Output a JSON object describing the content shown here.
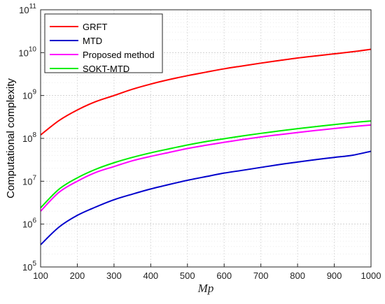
{
  "chart_data": {
    "type": "line",
    "title": "",
    "xlabel": "Mp",
    "ylabel": "Computational complexity",
    "x": [
      100,
      150,
      200,
      250,
      300,
      350,
      400,
      450,
      500,
      550,
      600,
      650,
      700,
      750,
      800,
      850,
      900,
      950,
      1000
    ],
    "xlim": [
      100,
      1000
    ],
    "ylim": [
      100000,
      100000000000
    ],
    "yscale": "log",
    "xticks": [
      "100",
      "200",
      "300",
      "400",
      "500",
      "600",
      "700",
      "800",
      "900",
      "1000"
    ],
    "yticks": [
      {
        "base": "10",
        "exp": "5"
      },
      {
        "base": "10",
        "exp": "6"
      },
      {
        "base": "10",
        "exp": "7"
      },
      {
        "base": "10",
        "exp": "8"
      },
      {
        "base": "10",
        "exp": "9"
      },
      {
        "base": "10",
        "exp": "10"
      },
      {
        "base": "10",
        "exp": "11"
      }
    ],
    "grid": true,
    "legend_position": "top-left",
    "series": [
      {
        "name": "GRFT",
        "color": "#ff0000",
        "values": [
          120000000.0,
          260000000.0,
          460000000.0,
          720000000.0,
          1000000000.0,
          1400000000.0,
          1850000000.0,
          2350000000.0,
          2900000000.0,
          3500000000.0,
          4200000000.0,
          4900000000.0,
          5700000000.0,
          6550000000.0,
          7500000000.0,
          8400000000.0,
          9400000000.0,
          10500000000.0,
          12000000000.0
        ]
      },
      {
        "name": "MTD",
        "color": "#0000cc",
        "values": [
          330000.0,
          850000.0,
          1600000.0,
          2500000.0,
          3700000.0,
          5000000.0,
          6600000.0,
          8400000.0,
          10500000.0,
          12800000.0,
          15500000.0,
          18000000.0,
          21000000.0,
          24500000.0,
          28000000.0,
          32000000.0,
          36000000.0,
          40500000.0,
          50000000.0
        ]
      },
      {
        "name": "Proposed method",
        "color": "#ff00ff",
        "values": [
          2000000.0,
          5500000.0,
          10000000.0,
          16000000.0,
          22000000.0,
          30000000.0,
          38000000.0,
          47000000.0,
          58000000.0,
          69000000.0,
          81000000.0,
          94000000.0,
          108000000.0,
          122000000.0,
          137000000.0,
          153000000.0,
          170000000.0,
          188000000.0,
          205000000.0
        ]
      },
      {
        "name": "SOKT-MTD",
        "color": "#00ee00",
        "values": [
          2400000.0,
          6500000.0,
          12000000.0,
          19000000.0,
          27000000.0,
          36000000.0,
          46000000.0,
          57000000.0,
          70000000.0,
          84000000.0,
          98000000.0,
          114000000.0,
          131000000.0,
          149000000.0,
          168000000.0,
          188000000.0,
          210000000.0,
          233000000.0,
          255000000.0
        ]
      }
    ]
  }
}
